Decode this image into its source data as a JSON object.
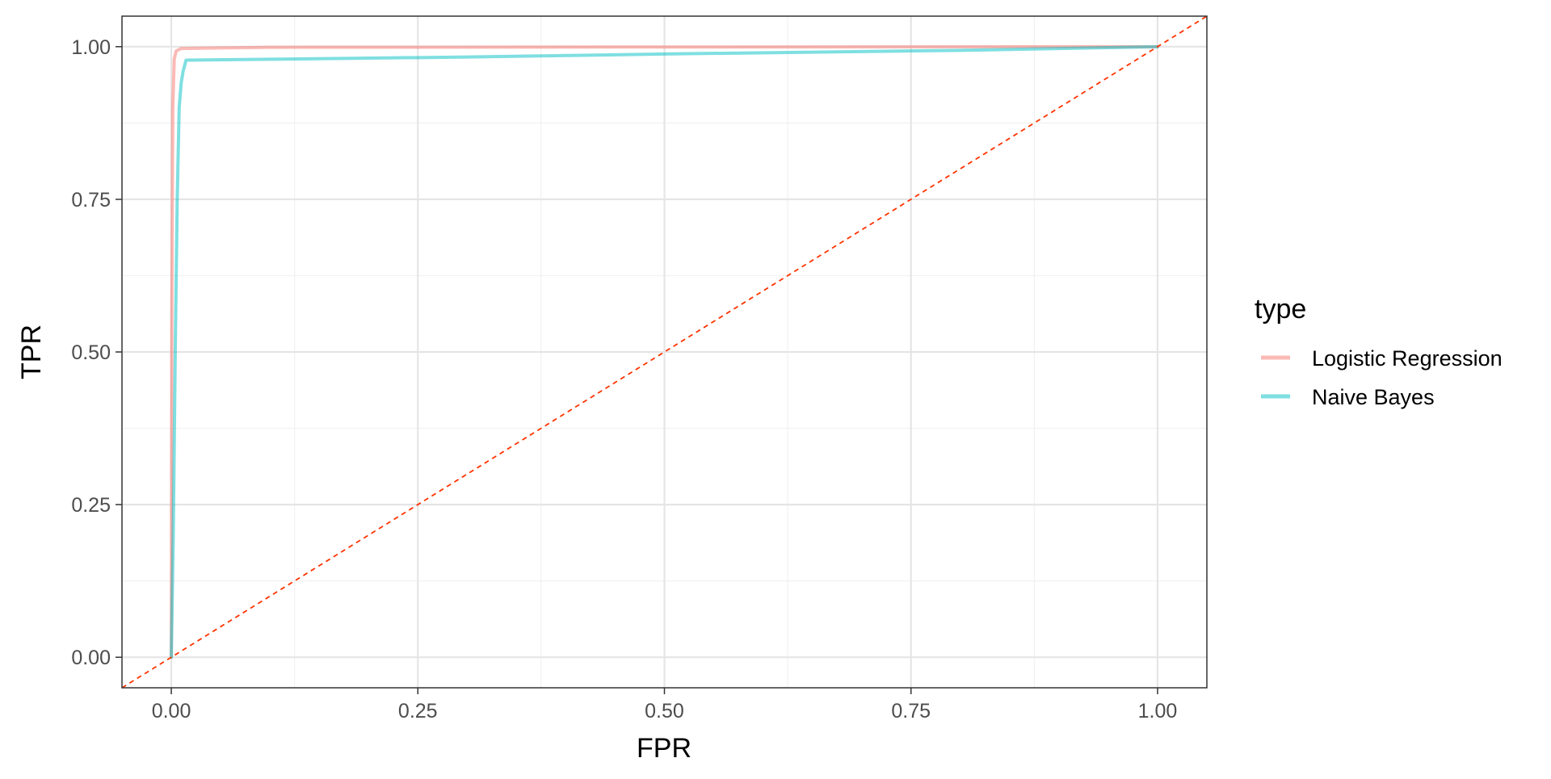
{
  "chart_data": {
    "type": "line",
    "title": "",
    "xlabel": "FPR",
    "ylabel": "TPR",
    "xlim": [
      -0.05,
      1.05
    ],
    "ylim": [
      -0.05,
      1.05
    ],
    "x_ticks": [
      "0.00",
      "0.25",
      "0.50",
      "0.75",
      "1.00"
    ],
    "y_ticks": [
      "0.00",
      "0.25",
      "0.50",
      "0.75",
      "1.00"
    ],
    "grid": true,
    "legend": {
      "title": "type",
      "placement": "right"
    },
    "series": [
      {
        "name": "Logistic Regression",
        "color": "#F8766D",
        "points": [
          [
            0.0,
            0.0
          ],
          [
            0.0005,
            0.55
          ],
          [
            0.0015,
            0.9
          ],
          [
            0.003,
            0.98
          ],
          [
            0.005,
            0.993
          ],
          [
            0.01,
            0.997
          ],
          [
            0.1,
            0.999
          ],
          [
            1.0,
            1.0
          ]
        ]
      },
      {
        "name": "Naive Bayes",
        "color": "#00BFC4",
        "points": [
          [
            0.0,
            0.0
          ],
          [
            0.002,
            0.2
          ],
          [
            0.004,
            0.5
          ],
          [
            0.006,
            0.75
          ],
          [
            0.008,
            0.9
          ],
          [
            0.01,
            0.94
          ],
          [
            0.012,
            0.96
          ],
          [
            0.015,
            0.978
          ],
          [
            0.3,
            0.983
          ],
          [
            0.5,
            0.988
          ],
          [
            0.8,
            0.994
          ],
          [
            1.0,
            1.0
          ]
        ]
      }
    ],
    "reference_line": {
      "type": "diagonal",
      "slope": 1,
      "intercept": 0,
      "color": "#FF3300",
      "dashed": true
    }
  }
}
